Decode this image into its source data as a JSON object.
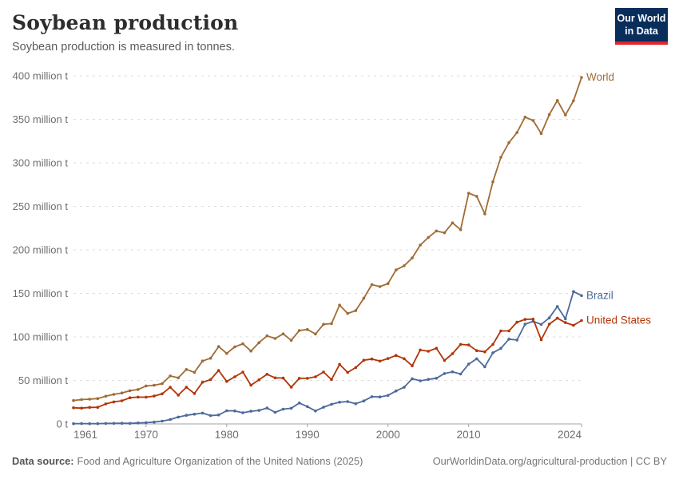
{
  "header": {
    "title": "Soybean production",
    "subtitle": "Soybean production is measured in tonnes.",
    "logo": {
      "line1": "Our World",
      "line2": "in Data"
    }
  },
  "footer": {
    "source_label": "Data source:",
    "source_text": "Food and Agriculture Organization of the United Nations (2025)",
    "link_text": "OurWorldinData.org/agricultural-production | CC BY"
  },
  "colors": {
    "grid": "#dddddd",
    "axis": "#a3a3a3",
    "tick_label": "#6e6e6e",
    "logo_bg": "#0a2e5c",
    "logo_red": "#e0262e"
  },
  "chart_data": {
    "type": "line",
    "title": "Soybean production",
    "unit": "tonnes",
    "grid": "horizontal-dashed",
    "legend_position": "end-of-line-labels",
    "xlim": [
      1961,
      2024
    ],
    "ylim": [
      0,
      400
    ],
    "y_ticks": [
      {
        "value": 0,
        "label": "0 t"
      },
      {
        "value": 50,
        "label": "50 million t"
      },
      {
        "value": 100,
        "label": "100 million t"
      },
      {
        "value": 150,
        "label": "150 million t"
      },
      {
        "value": 200,
        "label": "200 million t"
      },
      {
        "value": 250,
        "label": "250 million t"
      },
      {
        "value": 300,
        "label": "300 million t"
      },
      {
        "value": 350,
        "label": "350 million t"
      },
      {
        "value": 400,
        "label": "400 million t"
      }
    ],
    "x_ticks": [
      {
        "value": 1961,
        "label": "1961"
      },
      {
        "value": 1970,
        "label": "1970"
      },
      {
        "value": 1980,
        "label": "1980"
      },
      {
        "value": 1990,
        "label": "1990"
      },
      {
        "value": 2000,
        "label": "2000"
      },
      {
        "value": 2010,
        "label": "2010"
      },
      {
        "value": 2024,
        "label": "2024"
      }
    ],
    "years": [
      1961,
      1962,
      1963,
      1964,
      1965,
      1966,
      1967,
      1968,
      1969,
      1970,
      1971,
      1972,
      1973,
      1974,
      1975,
      1976,
      1977,
      1978,
      1979,
      1980,
      1981,
      1982,
      1983,
      1984,
      1985,
      1986,
      1987,
      1988,
      1989,
      1990,
      1991,
      1992,
      1993,
      1994,
      1995,
      1996,
      1997,
      1998,
      1999,
      2000,
      2001,
      2002,
      2003,
      2004,
      2005,
      2006,
      2007,
      2008,
      2009,
      2010,
      2011,
      2012,
      2013,
      2014,
      2015,
      2016,
      2017,
      2018,
      2019,
      2020,
      2021,
      2022,
      2023,
      2024
    ],
    "series": [
      {
        "name": "World",
        "color": "#a06b35",
        "values": [
          26.9,
          28.0,
          28.4,
          29.2,
          31.8,
          33.9,
          35.6,
          38.2,
          39.5,
          43.7,
          44.4,
          46.3,
          55.1,
          52.9,
          62.6,
          59.3,
          72.3,
          75.5,
          88.9,
          81.0,
          88.5,
          92.1,
          83.8,
          93.4,
          101.2,
          98.2,
          103.5,
          96.1,
          107.3,
          108.5,
          103.3,
          114.5,
          115.2,
          136.5,
          127.0,
          130.2,
          144.4,
          160.1,
          157.8,
          161.3,
          177.0,
          181.7,
          190.7,
          205.5,
          214.3,
          221.7,
          219.6,
          231.0,
          223.2,
          265.1,
          261.6,
          241.4,
          278.3,
          306.4,
          323.2,
          334.9,
          352.6,
          348.7,
          333.7,
          355.4,
          371.7,
          355.0,
          371.4,
          398.2
        ]
      },
      {
        "name": "Brazil",
        "color": "#4c6a9c",
        "values": [
          0.27,
          0.35,
          0.32,
          0.3,
          0.52,
          0.6,
          0.72,
          0.65,
          1.06,
          1.51,
          2.08,
          3.22,
          5.01,
          7.88,
          9.89,
          11.23,
          12.51,
          9.54,
          10.24,
          15.16,
          14.98,
          12.84,
          14.58,
          15.54,
          18.28,
          13.33,
          16.97,
          18.01,
          24.07,
          19.9,
          14.94,
          19.21,
          22.59,
          24.93,
          25.68,
          23.17,
          26.43,
          31.31,
          30.99,
          32.73,
          37.91,
          42.11,
          51.92,
          49.55,
          51.18,
          52.46,
          57.86,
          59.83,
          57.35,
          68.76,
          74.82,
          65.71,
          81.72,
          86.76,
          97.46,
          96.39,
          114.6,
          117.91,
          114.32,
          121.82,
          134.93,
          120.7,
          152.14,
          147.4
        ]
      },
      {
        "name": "United States",
        "color": "#b13507",
        "values": [
          18.5,
          18.2,
          19.0,
          19.1,
          23.0,
          25.3,
          26.6,
          30.1,
          30.8,
          30.7,
          32.0,
          34.6,
          42.1,
          33.1,
          42.1,
          35.0,
          47.9,
          50.9,
          61.5,
          48.8,
          54.1,
          59.6,
          44.5,
          50.6,
          57.1,
          52.9,
          52.7,
          42.2,
          52.4,
          52.4,
          54.1,
          59.6,
          50.9,
          68.4,
          59.2,
          64.8,
          73.2,
          74.6,
          72.2,
          75.1,
          78.7,
          75.0,
          66.8,
          85.0,
          83.5,
          87.0,
          72.9,
          80.7,
          91.4,
          90.7,
          84.2,
          82.8,
          91.4,
          106.9,
          106.9,
          116.9,
          120.1,
          120.5,
          96.7,
          114.7,
          121.5,
          116.4,
          113.3,
          118.8
        ]
      }
    ]
  }
}
